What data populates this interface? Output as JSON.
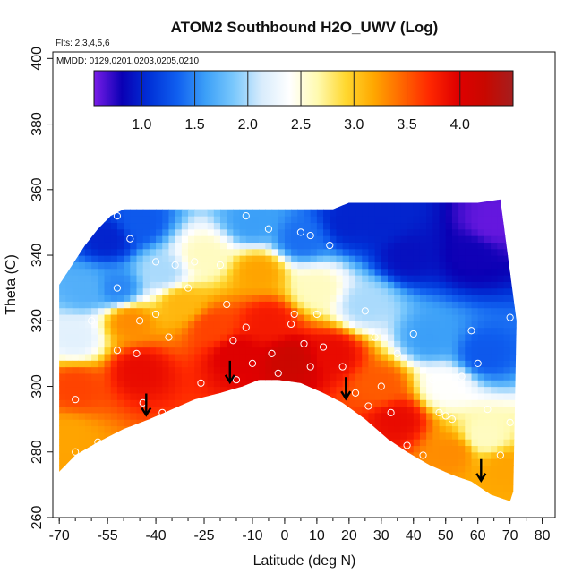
{
  "chart_data": {
    "type": "heatmap",
    "title": "ATOM2 Southbound H2O_UWV (Log)",
    "subtitle_flights": "Flts: 2,3,4,5,6",
    "subtitle_dates": "MMDD: 0129,0201,0203,0205,0210",
    "xlabel": "Latitude (deg N)",
    "ylabel": "Theta (C)",
    "xlim": [
      -72,
      84
    ],
    "ylim": [
      260,
      402
    ],
    "x_ticks": [
      -70,
      -55,
      -40,
      -25,
      -10,
      0,
      10,
      20,
      30,
      40,
      50,
      60,
      70,
      80
    ],
    "y_ticks": [
      260,
      280,
      300,
      320,
      340,
      360,
      380,
      400
    ],
    "colorbar": {
      "range": [
        0.55,
        4.5
      ],
      "ticks": [
        1.0,
        1.5,
        2.0,
        2.5,
        3.0,
        3.5,
        4.0
      ],
      "tick_labels": [
        "1.0",
        "1.5",
        "2.0",
        "2.5",
        "3.0",
        "3.5",
        "4.0"
      ],
      "colors": [
        "#7a1de8",
        "#0a00b4",
        "#0032d8",
        "#1060f0",
        "#3ca0f8",
        "#7ac8fc",
        "#d8ecfc",
        "#ffffff",
        "#fffab0",
        "#ffd830",
        "#ffa800",
        "#ff6800",
        "#ff2800",
        "#e00000",
        "#c80800",
        "#a51e1e"
      ]
    },
    "lower_boundary": [
      [
        -70,
        274
      ],
      [
        -65,
        279
      ],
      [
        -58,
        283
      ],
      [
        -50,
        287
      ],
      [
        -42,
        290
      ],
      [
        -35,
        293
      ],
      [
        -28,
        296
      ],
      [
        -20,
        298
      ],
      [
        -13,
        300
      ],
      [
        -8,
        302
      ],
      [
        -2,
        302
      ],
      [
        5,
        301
      ],
      [
        12,
        298
      ],
      [
        18,
        295
      ],
      [
        25,
        290
      ],
      [
        32,
        284
      ],
      [
        38,
        280
      ],
      [
        45,
        276
      ],
      [
        52,
        273
      ],
      [
        58,
        271
      ],
      [
        64,
        267
      ],
      [
        70,
        265
      ]
    ],
    "upper_boundary": [
      [
        -70,
        331
      ],
      [
        -66,
        337
      ],
      [
        -62,
        343
      ],
      [
        -58,
        348
      ],
      [
        -54,
        352
      ],
      [
        -50,
        354
      ],
      [
        -40,
        354
      ],
      [
        -30,
        354
      ],
      [
        -20,
        354
      ],
      [
        -10,
        354
      ],
      [
        0,
        354
      ],
      [
        10,
        354
      ],
      [
        15,
        354
      ],
      [
        20,
        356
      ],
      [
        40,
        356
      ],
      [
        60,
        356
      ],
      [
        67,
        357
      ],
      [
        72,
        320
      ],
      [
        71,
        268
      ]
    ],
    "field_anchors": [
      {
        "x": -65,
        "t": 300,
        "v": 3.6
      },
      {
        "x": -65,
        "t": 315,
        "v": 2.2
      },
      {
        "x": -62,
        "t": 330,
        "v": 1.7
      },
      {
        "x": -55,
        "t": 345,
        "v": 1.0
      },
      {
        "x": -52,
        "t": 330,
        "v": 1.5
      },
      {
        "x": -48,
        "t": 320,
        "v": 3.3
      },
      {
        "x": -45,
        "t": 305,
        "v": 3.9
      },
      {
        "x": -38,
        "t": 335,
        "v": 2.0
      },
      {
        "x": -32,
        "t": 325,
        "v": 3.1
      },
      {
        "x": -25,
        "t": 340,
        "v": 2.6
      },
      {
        "x": -22,
        "t": 318,
        "v": 3.6
      },
      {
        "x": -15,
        "t": 310,
        "v": 4.0
      },
      {
        "x": -8,
        "t": 335,
        "v": 3.2
      },
      {
        "x": -5,
        "t": 320,
        "v": 3.8
      },
      {
        "x": 2,
        "t": 308,
        "v": 4.2
      },
      {
        "x": 5,
        "t": 345,
        "v": 1.4
      },
      {
        "x": 10,
        "t": 330,
        "v": 2.6
      },
      {
        "x": 15,
        "t": 310,
        "v": 3.9
      },
      {
        "x": 20,
        "t": 350,
        "v": 1.0
      },
      {
        "x": 25,
        "t": 325,
        "v": 2.0
      },
      {
        "x": 30,
        "t": 300,
        "v": 3.5
      },
      {
        "x": 35,
        "t": 290,
        "v": 3.9
      },
      {
        "x": 38,
        "t": 340,
        "v": 0.9
      },
      {
        "x": 45,
        "t": 315,
        "v": 1.6
      },
      {
        "x": 50,
        "t": 300,
        "v": 2.4
      },
      {
        "x": 52,
        "t": 280,
        "v": 3.3
      },
      {
        "x": 58,
        "t": 340,
        "v": 0.8
      },
      {
        "x": 62,
        "t": 310,
        "v": 1.3
      },
      {
        "x": 65,
        "t": 350,
        "v": 0.6
      },
      {
        "x": 62,
        "t": 285,
        "v": 2.6
      },
      {
        "x": 68,
        "t": 275,
        "v": 3.2
      },
      {
        "x": -68,
        "t": 285,
        "v": 3.2
      },
      {
        "x": -10,
        "t": 350,
        "v": 1.6
      },
      {
        "x": -45,
        "t": 350,
        "v": 1.3
      },
      {
        "x": 30,
        "t": 350,
        "v": 1.0
      }
    ],
    "sample_points": [
      [
        -52,
        352
      ],
      [
        -48,
        345
      ],
      [
        -40,
        338
      ],
      [
        -34,
        337
      ],
      [
        -28,
        338
      ],
      [
        -20,
        337
      ],
      [
        -12,
        352
      ],
      [
        -5,
        348
      ],
      [
        5,
        347
      ],
      [
        8,
        346
      ],
      [
        14,
        343
      ],
      [
        -52,
        330
      ],
      [
        -45,
        320
      ],
      [
        -36,
        315
      ],
      [
        -30,
        330
      ],
      [
        -18,
        325
      ],
      [
        -12,
        318
      ],
      [
        -4,
        310
      ],
      [
        3,
        322
      ],
      [
        6,
        313
      ],
      [
        10,
        322
      ],
      [
        -60,
        320
      ],
      [
        -52,
        311
      ],
      [
        -44,
        295
      ],
      [
        -38,
        292
      ],
      [
        -30,
        288
      ],
      [
        -22,
        287
      ],
      [
        -15,
        302
      ],
      [
        -10,
        307
      ],
      [
        -2,
        304
      ],
      [
        8,
        306
      ],
      [
        12,
        312
      ],
      [
        18,
        306
      ],
      [
        22,
        298
      ],
      [
        26,
        294
      ],
      [
        30,
        300
      ],
      [
        33,
        292
      ],
      [
        38,
        282
      ],
      [
        43,
        279
      ],
      [
        48,
        292
      ],
      [
        52,
        290
      ],
      [
        55,
        303
      ],
      [
        58,
        317
      ],
      [
        63,
        293
      ],
      [
        67,
        279
      ],
      [
        70,
        289
      ],
      [
        -65,
        296
      ],
      [
        -65,
        280
      ],
      [
        -58,
        283
      ],
      [
        -46,
        310
      ],
      [
        -40,
        322
      ],
      [
        -26,
        301
      ],
      [
        -16,
        314
      ],
      [
        2,
        319
      ],
      [
        25,
        323
      ],
      [
        28,
        315
      ],
      [
        35,
        310
      ],
      [
        40,
        316
      ],
      [
        46,
        302
      ],
      [
        50,
        291
      ],
      [
        60,
        307
      ],
      [
        70,
        321
      ]
    ],
    "arrows": [
      {
        "x": -43,
        "t": 294
      },
      {
        "x": -17,
        "t": 304
      },
      {
        "x": 19,
        "t": 299
      },
      {
        "x": 61,
        "t": 274
      }
    ]
  }
}
